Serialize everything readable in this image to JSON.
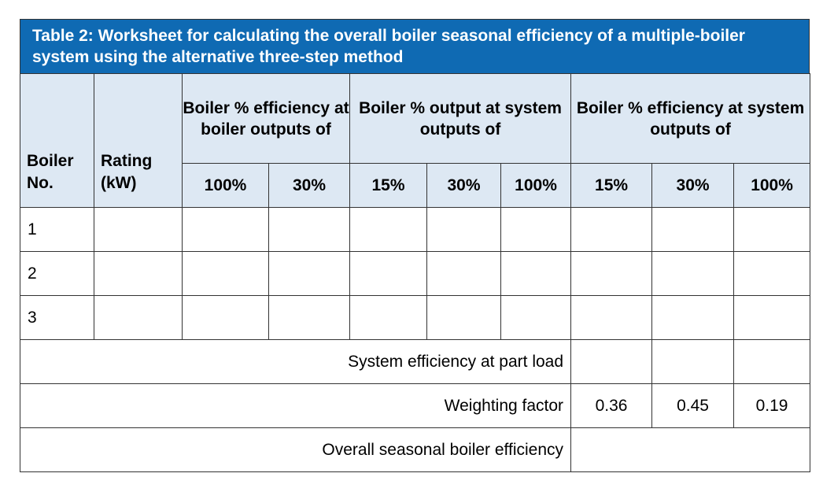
{
  "title": "Table 2: Worksheet for calculating the overall boiler seasonal efficiency of a multiple-boiler system using the alternative three-step method",
  "headers": {
    "boiler_no": "Boiler No.",
    "rating": "Rating (kW)",
    "group_efficiency_boiler": "Boiler % efficiency at boiler outputs of",
    "group_output_system": "Boiler % output at system outputs of",
    "group_efficiency_system": "Boiler % efficiency at system outputs of",
    "eff_boiler_cols": [
      "100%",
      "30%"
    ],
    "output_system_cols": [
      "15%",
      "30%",
      "100%"
    ],
    "eff_system_cols": [
      "15%",
      "30%",
      "100%"
    ]
  },
  "rows": [
    {
      "boiler": "1"
    },
    {
      "boiler": "2"
    },
    {
      "boiler": "3"
    }
  ],
  "summary": {
    "part_load_label": "System efficiency at part load",
    "weighting_label": "Weighting factor",
    "weighting_values": [
      "0.36",
      "0.45",
      "0.19"
    ],
    "overall_label": "Overall seasonal boiler efficiency"
  }
}
